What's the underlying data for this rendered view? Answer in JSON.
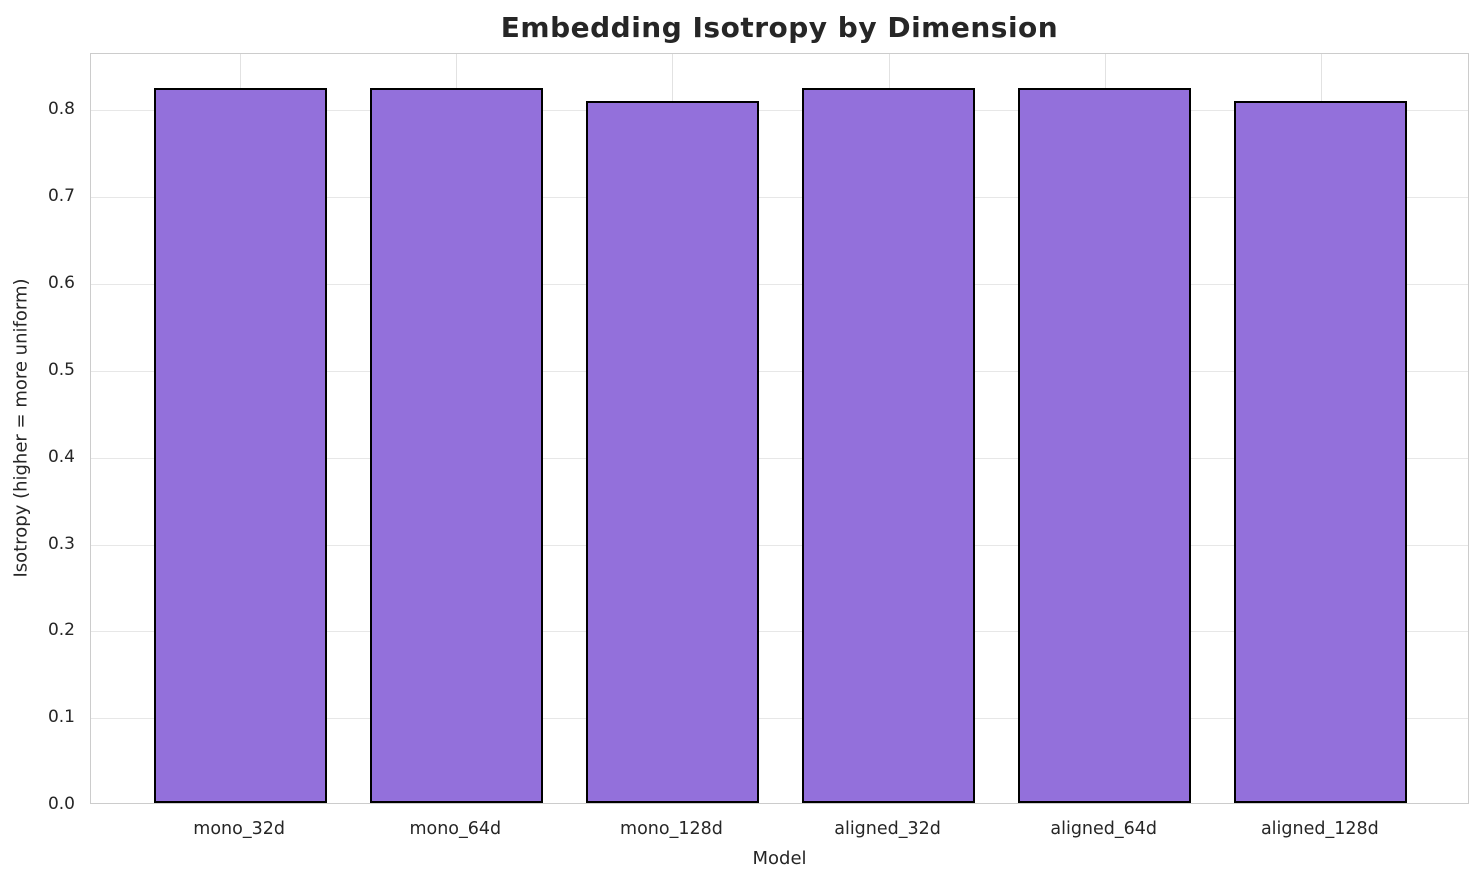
{
  "chart_data": {
    "type": "bar",
    "title": "Embedding Isotropy by Dimension",
    "xlabel": "Model",
    "ylabel": "Isotropy (higher = more uniform)",
    "categories": [
      "mono_32d",
      "mono_64d",
      "mono_128d",
      "aligned_32d",
      "aligned_64d",
      "aligned_128d"
    ],
    "values": [
      0.824,
      0.824,
      0.809,
      0.824,
      0.824,
      0.809
    ],
    "ylim": [
      0,
      0.865
    ],
    "yticks": [
      0.0,
      0.1,
      0.2,
      0.3,
      0.4,
      0.5,
      0.6,
      0.7,
      0.8
    ],
    "ytick_labels": [
      "0.0",
      "0.1",
      "0.2",
      "0.3",
      "0.4",
      "0.5",
      "0.6",
      "0.7",
      "0.8"
    ],
    "grid": true,
    "legend_visible": false,
    "bar_fill_color": "#9370DB",
    "bar_edge_color": "#000000"
  },
  "styles": {
    "background_color": "#ffffff",
    "grid_color": "#e7e7e7",
    "spine_color": "#cccccc",
    "text_color": "#262626"
  }
}
